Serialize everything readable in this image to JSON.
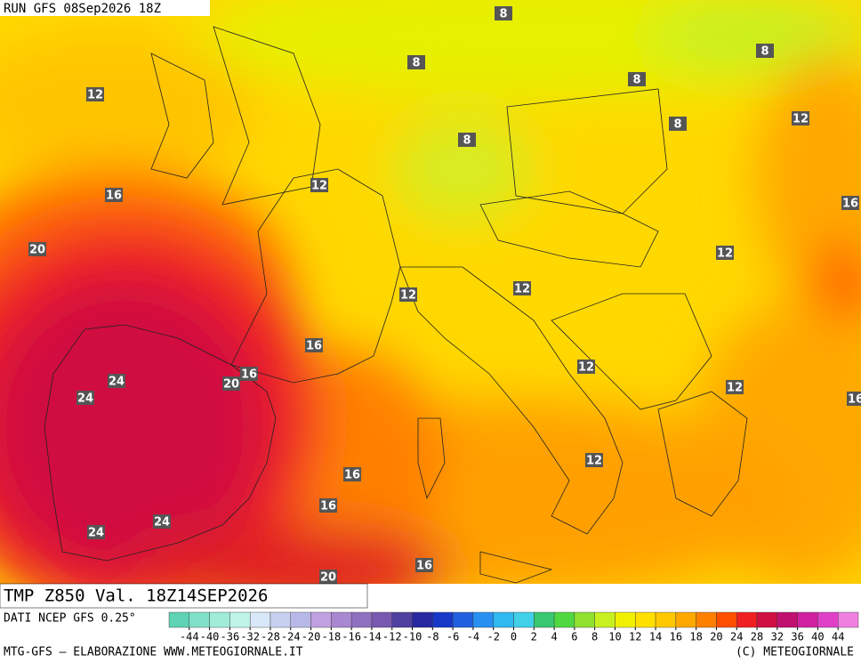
{
  "header": {
    "run": "RUN GFS 08Sep2026 18Z"
  },
  "title": "TMP Z850 Val. 18Z14SEP2026",
  "source": "DATI NCEP GFS 0.25°",
  "contour_labels": [
    8,
    8,
    8,
    8,
    8,
    8,
    12,
    12,
    12,
    16,
    16,
    20,
    12,
    12,
    12,
    16,
    16,
    20,
    24,
    24,
    12,
    12,
    16,
    12,
    16,
    16,
    24,
    24,
    16,
    20
  ],
  "colorbar": {
    "ticks": [
      -44,
      -40,
      -36,
      -32,
      -28,
      -24,
      -20,
      -18,
      -16,
      -14,
      -12,
      -10,
      -8,
      -6,
      -4,
      -2,
      0,
      2,
      4,
      6,
      8,
      10,
      12,
      14,
      16,
      18,
      20,
      24,
      28,
      32,
      36,
      40,
      44
    ],
    "colors": [
      "#5fd3b3",
      "#7fe0c8",
      "#a0ecd8",
      "#c0f4e8",
      "#d8e8f8",
      "#c8d0f0",
      "#b8b8e8",
      "#c0a0e0",
      "#a888d0",
      "#9070c0",
      "#7858b0",
      "#5040a0",
      "#2828a0",
      "#1838c8",
      "#2060e0",
      "#2890f0",
      "#30b8f0",
      "#40d0e8",
      "#38c870",
      "#50d840",
      "#90e030",
      "#c8f020",
      "#f0f000",
      "#ffe000",
      "#ffc800",
      "#ffa800",
      "#ff8000",
      "#ff5000",
      "#f02020",
      "#d01040",
      "#c01070",
      "#d020a0",
      "#e040c8",
      "#f080e0"
    ]
  },
  "footer": {
    "left": "MTG-GFS — ELABORAZIONE WWW.METEOGIORNALE.IT",
    "right": "(C) METEOGIORNALE"
  }
}
